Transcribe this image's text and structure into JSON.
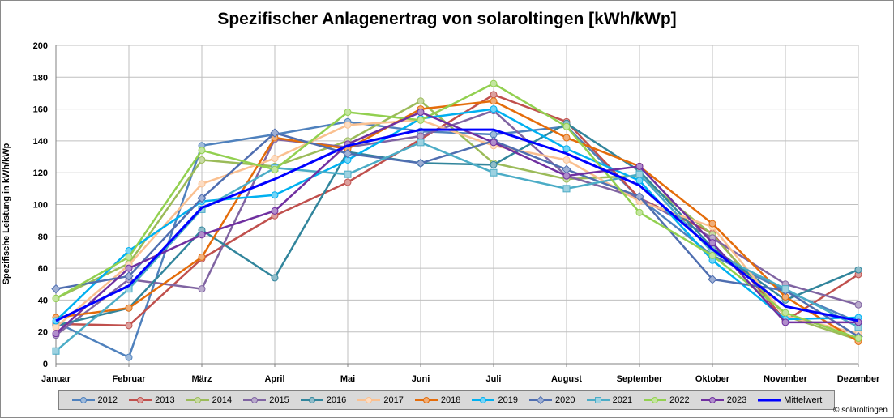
{
  "chart_data": {
    "type": "line",
    "title": "Spezifischer Anlagenertrag von solaroltingen [kWh/kWp]",
    "ylabel": "Spezifische Leistung in kWh/kWp",
    "xlabel": "",
    "ylim": [
      0,
      200
    ],
    "yticks": [
      0,
      20,
      40,
      60,
      80,
      100,
      120,
      140,
      160,
      180,
      200
    ],
    "grid": true,
    "legend_position": "bottom",
    "categories": [
      "Januar",
      "Februar",
      "März",
      "April",
      "Mai",
      "Juni",
      "Juli",
      "August",
      "September",
      "Oktober",
      "November",
      "Dezember"
    ],
    "series": [
      {
        "name": "2012",
        "color": "#4f81bd",
        "marker": "circle",
        "values": [
          26,
          4,
          137,
          144,
          152,
          146,
          144,
          149,
          104,
          68,
          46,
          26
        ]
      },
      {
        "name": "2013",
        "color": "#c0504d",
        "marker": "circle",
        "values": [
          25,
          24,
          66,
          93,
          114,
          141,
          169,
          152,
          104,
          82,
          27,
          56
        ]
      },
      {
        "name": "2014",
        "color": "#9bbb59",
        "marker": "circle",
        "values": [
          41,
          63,
          128,
          124,
          140,
          165,
          126,
          116,
          118,
          81,
          30,
          15
        ]
      },
      {
        "name": "2015",
        "color": "#8064a2",
        "marker": "circle",
        "values": [
          18,
          53,
          47,
          141,
          136,
          143,
          159,
          118,
          104,
          79,
          50,
          37
        ]
      },
      {
        "name": "2016",
        "color": "#31859c",
        "marker": "circle",
        "values": [
          24,
          35,
          84,
          54,
          133,
          126,
          125,
          151,
          121,
          73,
          40,
          59
        ]
      },
      {
        "name": "2017",
        "color": "#fac090",
        "marker": "circle",
        "values": [
          23,
          62,
          113,
          129,
          150,
          153,
          137,
          128,
          102,
          86,
          30,
          19
        ]
      },
      {
        "name": "2018",
        "color": "#e46c0a",
        "marker": "circle",
        "values": [
          29,
          35,
          67,
          142,
          135,
          160,
          165,
          142,
          124,
          88,
          42,
          14
        ]
      },
      {
        "name": "2019",
        "color": "#00b0f0",
        "marker": "circle",
        "values": [
          27,
          71,
          102,
          106,
          128,
          154,
          160,
          135,
          115,
          65,
          28,
          29
        ]
      },
      {
        "name": "2020",
        "color": "#4f6eb0",
        "marker": "diamond",
        "values": [
          47,
          55,
          104,
          145,
          132,
          126,
          140,
          122,
          105,
          53,
          46,
          17
        ]
      },
      {
        "name": "2021",
        "color": "#4bacc6",
        "marker": "square",
        "values": [
          8,
          47,
          97,
          123,
          119,
          139,
          120,
          110,
          119,
          70,
          47,
          23
        ]
      },
      {
        "name": "2022",
        "color": "#92d050",
        "marker": "circle",
        "values": [
          41,
          67,
          134,
          122,
          158,
          153,
          176,
          149,
          95,
          68,
          32,
          16
        ]
      },
      {
        "name": "2023",
        "color": "#7030a0",
        "marker": "circle",
        "values": [
          19,
          60,
          81,
          96,
          138,
          158,
          139,
          118,
          124,
          76,
          26,
          26
        ]
      },
      {
        "name": "Mittelwert",
        "color": "#0000ff",
        "marker": "none",
        "values": [
          27,
          49,
          98,
          116,
          137,
          147,
          147,
          132,
          112,
          72,
          36,
          27
        ]
      }
    ]
  },
  "credit": "© solaroltingen"
}
